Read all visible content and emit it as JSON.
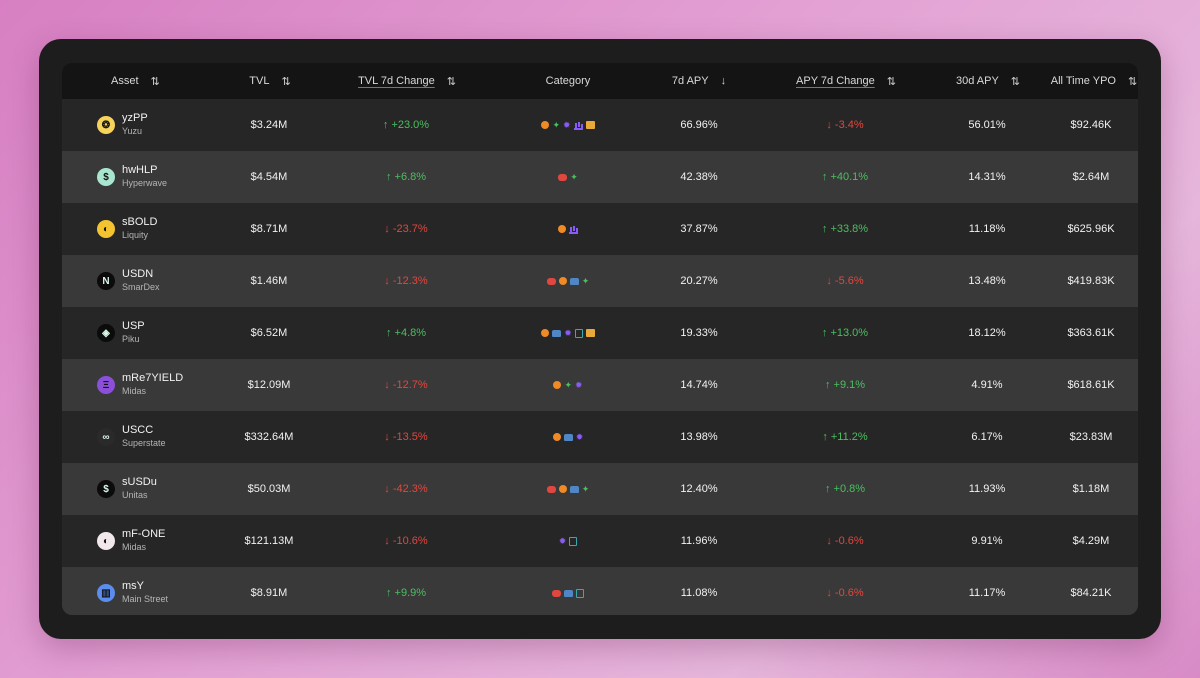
{
  "headers": {
    "asset": "Asset",
    "tvl": "TVL",
    "tvl_change": "TVL 7d Change",
    "category": "Category",
    "apy7d": "7d APY",
    "apy_change": "APY 7d Change",
    "apy30d": "30d APY",
    "ypo": "All Time YPO"
  },
  "sort_icons": {
    "updown": "⇅",
    "down": "↓"
  },
  "rows": [
    {
      "symbol": "yzPP",
      "project": "Yuzu",
      "logo_icon": "yuzu-logo-icon",
      "logo_color": "#f6d35b",
      "logo_glyph": "❂",
      "tvl": "$3.24M",
      "tvl_change": "↑ +23.0%",
      "tvl_dir": "pos",
      "categories": [
        "btc",
        "palm",
        "gear",
        "chart",
        "box"
      ],
      "apy7d": "66.96%",
      "apy_change": "↓ -3.4%",
      "apy_dir": "neg",
      "apy30d": "56.01%",
      "ypo": "$92.46K"
    },
    {
      "symbol": "hwHLP",
      "project": "Hyperwave",
      "logo_icon": "hyperwave-logo-icon",
      "logo_color": "#a9e6cf",
      "logo_glyph": "$",
      "tvl": "$4.54M",
      "tvl_change": "↑ +6.8%",
      "tvl_dir": "pos",
      "categories": [
        "bot",
        "palm"
      ],
      "apy7d": "42.38%",
      "apy_change": "↑ +40.1%",
      "apy_dir": "pos",
      "apy30d": "14.31%",
      "ypo": "$2.64M"
    },
    {
      "symbol": "sBOLD",
      "project": "Liquity",
      "logo_icon": "liquity-logo-icon",
      "logo_color": "#f4c430",
      "logo_glyph": "◐",
      "tvl": "$8.71M",
      "tvl_change": "↓ -23.7%",
      "tvl_dir": "neg",
      "categories": [
        "btc",
        "chart"
      ],
      "apy7d": "37.87%",
      "apy_change": "↑ +33.8%",
      "apy_dir": "pos",
      "apy30d": "11.18%",
      "ypo": "$625.96K"
    },
    {
      "symbol": "USDN",
      "project": "SmarDex",
      "logo_icon": "smardex-logo-icon",
      "logo_color": "#0b0b0b",
      "logo_glyph": "N",
      "tvl": "$1.46M",
      "tvl_change": "↓ -12.3%",
      "tvl_dir": "neg",
      "categories": [
        "bot",
        "btc",
        "build",
        "palm"
      ],
      "apy7d": "20.27%",
      "apy_change": "↓ -5.6%",
      "apy_dir": "neg",
      "apy30d": "13.48%",
      "ypo": "$419.83K"
    },
    {
      "symbol": "USP",
      "project": "Piku",
      "logo_icon": "piku-logo-icon",
      "logo_color": "#0b0b0b",
      "logo_glyph": "◈",
      "tvl": "$6.52M",
      "tvl_change": "↑ +4.8%",
      "tvl_dir": "pos",
      "categories": [
        "btc",
        "build",
        "gear",
        "doc",
        "box"
      ],
      "apy7d": "19.33%",
      "apy_change": "↑ +13.0%",
      "apy_dir": "pos",
      "apy30d": "18.12%",
      "ypo": "$363.61K"
    },
    {
      "symbol": "mRe7YIELD",
      "project": "Midas",
      "logo_icon": "midas-logo-icon",
      "logo_color": "#8b4fd9",
      "logo_glyph": "Ξ",
      "tvl": "$12.09M",
      "tvl_change": "↓ -12.7%",
      "tvl_dir": "neg",
      "categories": [
        "btc",
        "palm",
        "gear"
      ],
      "apy7d": "14.74%",
      "apy_change": "↑ +9.1%",
      "apy_dir": "pos",
      "apy30d": "4.91%",
      "ypo": "$618.61K"
    },
    {
      "symbol": "USCC",
      "project": "Superstate",
      "logo_icon": "superstate-logo-icon",
      "logo_color": "#2a2a2a",
      "logo_glyph": "∞",
      "tvl": "$332.64M",
      "tvl_change": "↓ -13.5%",
      "tvl_dir": "neg",
      "categories": [
        "btc",
        "build",
        "gear"
      ],
      "apy7d": "13.98%",
      "apy_change": "↑ +11.2%",
      "apy_dir": "pos",
      "apy30d": "6.17%",
      "ypo": "$23.83M"
    },
    {
      "symbol": "sUSDu",
      "project": "Unitas",
      "logo_icon": "unitas-logo-icon",
      "logo_color": "#0b0b0b",
      "logo_glyph": "$",
      "tvl": "$50.03M",
      "tvl_change": "↓ -42.3%",
      "tvl_dir": "neg",
      "categories": [
        "bot",
        "btc",
        "build",
        "palm"
      ],
      "apy7d": "12.40%",
      "apy_change": "↑ +0.8%",
      "apy_dir": "pos",
      "apy30d": "11.93%",
      "ypo": "$1.18M"
    },
    {
      "symbol": "mF-ONE",
      "project": "Midas",
      "logo_icon": "midas-f-one-logo-icon",
      "logo_color": "#f2e7ea",
      "logo_glyph": "◐",
      "tvl": "$121.13M",
      "tvl_change": "↓ -10.6%",
      "tvl_dir": "neg",
      "categories": [
        "gear",
        "doc"
      ],
      "apy7d": "11.96%",
      "apy_change": "↓ -0.6%",
      "apy_dir": "neg",
      "apy30d": "9.91%",
      "ypo": "$4.29M"
    },
    {
      "symbol": "msY",
      "project": "Main Street",
      "logo_icon": "main-street-logo-icon",
      "logo_color": "#5b8def",
      "logo_glyph": "▥",
      "tvl": "$8.91M",
      "tvl_change": "↑ +9.9%",
      "tvl_dir": "pos",
      "categories": [
        "bot",
        "build",
        "doc"
      ],
      "apy7d": "11.08%",
      "apy_change": "↓ -0.6%",
      "apy_dir": "neg",
      "apy30d": "11.17%",
      "ypo": "$84.21K"
    }
  ]
}
